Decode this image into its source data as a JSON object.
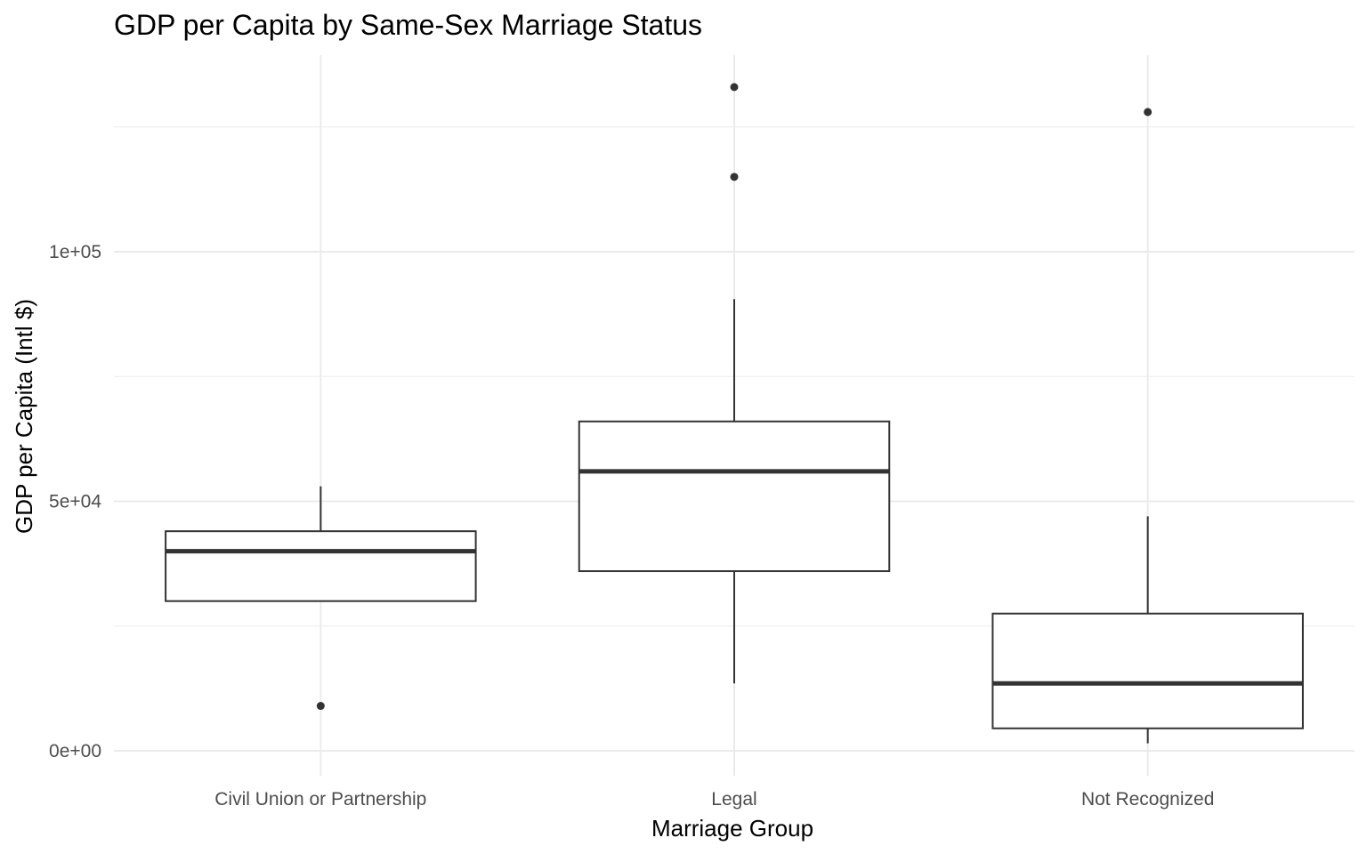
{
  "chart_data": {
    "type": "boxplot",
    "title": "GDP per Capita by Same-Sex Marriage Status",
    "xlabel": "Marriage Group",
    "ylabel": "GDP per Capita (Intl $)",
    "ylim": [
      -5000,
      139000
    ],
    "yticks": [
      {
        "value": 0,
        "label": "0e+00"
      },
      {
        "value": 50000,
        "label": "5e+04"
      },
      {
        "value": 100000,
        "label": "1e+05"
      }
    ],
    "minor_yticks": [
      25000,
      75000,
      125000
    ],
    "grid": true,
    "categories": [
      "Civil Union or Partnership",
      "Legal",
      "Not Recognized"
    ],
    "boxes": [
      {
        "category": "Civil Union or Partnership",
        "whisker_low": 30000,
        "q1": 30000,
        "median": 40000,
        "q3": 44000,
        "whisker_high": 53000,
        "outliers": [
          9000
        ]
      },
      {
        "category": "Legal",
        "whisker_low": 13500,
        "q1": 36000,
        "median": 56000,
        "q3": 66000,
        "whisker_high": 90500,
        "outliers": [
          115000,
          133000
        ]
      },
      {
        "category": "Not Recognized",
        "whisker_low": 1500,
        "q1": 4500,
        "median": 13500,
        "q3": 27500,
        "whisker_high": 47000,
        "outliers": [
          128000
        ]
      }
    ],
    "colors": {
      "box_stroke": "#333333",
      "box_fill": "#ffffff",
      "grid": "#ebebeb",
      "tick_text": "#4d4d4d"
    }
  }
}
